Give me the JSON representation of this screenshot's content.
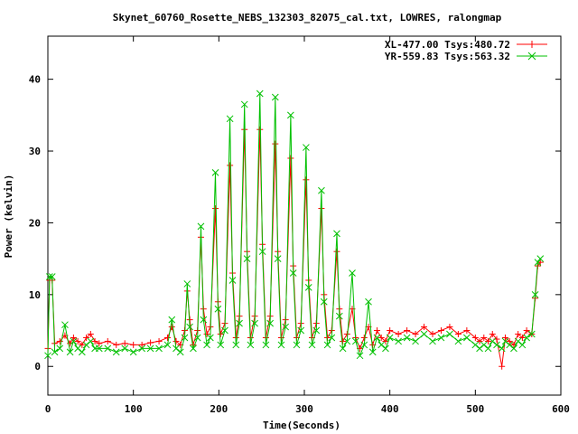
{
  "chart_data": {
    "type": "line",
    "title": "Skynet_60760_Rosette_NEBS_132303_82075_cal.txt, LOWRES, ralongmap",
    "xlabel": "Time(Seconds)",
    "ylabel": "Power (kelvin)",
    "xlim": [
      0,
      600
    ],
    "ylim": [
      -4,
      46
    ],
    "xticks": [
      0,
      100,
      200,
      300,
      400,
      500,
      600
    ],
    "yticks": [
      0,
      10,
      20,
      30,
      40
    ],
    "grid": false,
    "legend_position": "top-right",
    "series": [
      {
        "name": "XL-477.00 Tsys:480.72",
        "color": "#ff0000",
        "marker": "plus",
        "points": [
          [
            0,
            2.5
          ],
          [
            2,
            12.0
          ],
          [
            5,
            12.0
          ],
          [
            8,
            3.2
          ],
          [
            14,
            3.5
          ],
          [
            20,
            4.3
          ],
          [
            26,
            3.2
          ],
          [
            30,
            4.0
          ],
          [
            35,
            3.5
          ],
          [
            40,
            3.0
          ],
          [
            45,
            4.0
          ],
          [
            50,
            4.5
          ],
          [
            55,
            3.5
          ],
          [
            60,
            3.2
          ],
          [
            70,
            3.5
          ],
          [
            80,
            3.0
          ],
          [
            90,
            3.2
          ],
          [
            100,
            3.0
          ],
          [
            110,
            3.0
          ],
          [
            120,
            3.3
          ],
          [
            130,
            3.5
          ],
          [
            140,
            4.0
          ],
          [
            145,
            5.5
          ],
          [
            150,
            3.5
          ],
          [
            155,
            3.0
          ],
          [
            160,
            5.0
          ],
          [
            163,
            10.5
          ],
          [
            166,
            6.5
          ],
          [
            170,
            3.0
          ],
          [
            175,
            5.0
          ],
          [
            179,
            18.0
          ],
          [
            182,
            8.0
          ],
          [
            186,
            4.5
          ],
          [
            190,
            5.5
          ],
          [
            196,
            22.0
          ],
          [
            199,
            9.0
          ],
          [
            202,
            4.5
          ],
          [
            207,
            6.0
          ],
          [
            213,
            28.0
          ],
          [
            216,
            13.0
          ],
          [
            220,
            4.0
          ],
          [
            224,
            7.0
          ],
          [
            230,
            33.0
          ],
          [
            233,
            16.0
          ],
          [
            237,
            4.0
          ],
          [
            242,
            7.0
          ],
          [
            248,
            33.0
          ],
          [
            251,
            17.0
          ],
          [
            255,
            4.0
          ],
          [
            260,
            7.0
          ],
          [
            266,
            31.0
          ],
          [
            269,
            16.0
          ],
          [
            273,
            4.0
          ],
          [
            278,
            6.5
          ],
          [
            284,
            29.0
          ],
          [
            287,
            14.0
          ],
          [
            291,
            4.0
          ],
          [
            296,
            6.0
          ],
          [
            302,
            26.0
          ],
          [
            305,
            12.0
          ],
          [
            309,
            4.0
          ],
          [
            314,
            6.0
          ],
          [
            320,
            22.0
          ],
          [
            323,
            10.0
          ],
          [
            327,
            4.0
          ],
          [
            332,
            5.0
          ],
          [
            338,
            16.0
          ],
          [
            341,
            8.0
          ],
          [
            345,
            3.5
          ],
          [
            350,
            4.5
          ],
          [
            356,
            8.0
          ],
          [
            360,
            4.0
          ],
          [
            365,
            2.5
          ],
          [
            370,
            4.0
          ],
          [
            375,
            5.5
          ],
          [
            380,
            3.0
          ],
          [
            385,
            5.0
          ],
          [
            390,
            4.0
          ],
          [
            395,
            3.5
          ],
          [
            400,
            5.0
          ],
          [
            410,
            4.5
          ],
          [
            420,
            5.0
          ],
          [
            430,
            4.5
          ],
          [
            440,
            5.5
          ],
          [
            450,
            4.5
          ],
          [
            460,
            5.0
          ],
          [
            470,
            5.5
          ],
          [
            480,
            4.5
          ],
          [
            490,
            5.0
          ],
          [
            500,
            4.0
          ],
          [
            505,
            3.5
          ],
          [
            510,
            4.0
          ],
          [
            515,
            3.5
          ],
          [
            520,
            4.5
          ],
          [
            525,
            3.8
          ],
          [
            531,
            0.0
          ],
          [
            535,
            4.0
          ],
          [
            540,
            3.5
          ],
          [
            545,
            3.0
          ],
          [
            550,
            4.5
          ],
          [
            555,
            4.0
          ],
          [
            560,
            5.0
          ],
          [
            566,
            4.5
          ],
          [
            570,
            9.5
          ],
          [
            573,
            14.0
          ],
          [
            576,
            14.5
          ]
        ]
      },
      {
        "name": "YR-559.83 Tsys:563.32",
        "color": "#00c000",
        "marker": "cross",
        "points": [
          [
            0,
            1.5
          ],
          [
            2,
            12.5
          ],
          [
            5,
            12.5
          ],
          [
            8,
            2.0
          ],
          [
            14,
            2.5
          ],
          [
            20,
            5.8
          ],
          [
            26,
            2.0
          ],
          [
            30,
            3.5
          ],
          [
            35,
            2.5
          ],
          [
            40,
            2.0
          ],
          [
            45,
            3.0
          ],
          [
            50,
            3.5
          ],
          [
            55,
            2.5
          ],
          [
            60,
            2.5
          ],
          [
            70,
            2.5
          ],
          [
            80,
            2.0
          ],
          [
            90,
            2.5
          ],
          [
            100,
            2.0
          ],
          [
            110,
            2.5
          ],
          [
            120,
            2.5
          ],
          [
            130,
            2.5
          ],
          [
            140,
            3.0
          ],
          [
            145,
            6.5
          ],
          [
            150,
            2.5
          ],
          [
            155,
            2.0
          ],
          [
            160,
            4.0
          ],
          [
            163,
            11.5
          ],
          [
            166,
            5.5
          ],
          [
            170,
            2.5
          ],
          [
            175,
            4.0
          ],
          [
            179,
            19.5
          ],
          [
            182,
            6.5
          ],
          [
            186,
            3.0
          ],
          [
            190,
            4.0
          ],
          [
            196,
            27.0
          ],
          [
            199,
            8.0
          ],
          [
            202,
            3.0
          ],
          [
            207,
            5.0
          ],
          [
            213,
            34.5
          ],
          [
            216,
            12.0
          ],
          [
            220,
            3.0
          ],
          [
            224,
            6.0
          ],
          [
            230,
            36.5
          ],
          [
            233,
            15.0
          ],
          [
            237,
            3.0
          ],
          [
            242,
            6.0
          ],
          [
            248,
            38.0
          ],
          [
            251,
            16.0
          ],
          [
            255,
            3.0
          ],
          [
            260,
            6.0
          ],
          [
            266,
            37.5
          ],
          [
            269,
            15.0
          ],
          [
            273,
            3.0
          ],
          [
            278,
            5.5
          ],
          [
            284,
            35.0
          ],
          [
            287,
            13.0
          ],
          [
            291,
            3.0
          ],
          [
            296,
            5.0
          ],
          [
            302,
            30.5
          ],
          [
            305,
            11.0
          ],
          [
            309,
            3.0
          ],
          [
            314,
            5.0
          ],
          [
            320,
            24.5
          ],
          [
            323,
            9.0
          ],
          [
            327,
            3.0
          ],
          [
            332,
            4.0
          ],
          [
            338,
            18.5
          ],
          [
            341,
            7.0
          ],
          [
            345,
            2.5
          ],
          [
            350,
            3.5
          ],
          [
            356,
            13.0
          ],
          [
            360,
            3.5
          ],
          [
            365,
            1.5
          ],
          [
            370,
            3.0
          ],
          [
            375,
            9.0
          ],
          [
            380,
            2.0
          ],
          [
            385,
            4.0
          ],
          [
            390,
            3.0
          ],
          [
            395,
            2.5
          ],
          [
            400,
            4.0
          ],
          [
            410,
            3.5
          ],
          [
            420,
            4.0
          ],
          [
            430,
            3.5
          ],
          [
            440,
            4.5
          ],
          [
            450,
            3.5
          ],
          [
            460,
            4.0
          ],
          [
            470,
            4.5
          ],
          [
            480,
            3.5
          ],
          [
            490,
            4.0
          ],
          [
            500,
            3.0
          ],
          [
            505,
            2.5
          ],
          [
            510,
            3.0
          ],
          [
            515,
            2.5
          ],
          [
            520,
            3.5
          ],
          [
            525,
            3.0
          ],
          [
            531,
            2.5
          ],
          [
            535,
            3.5
          ],
          [
            540,
            3.0
          ],
          [
            545,
            2.5
          ],
          [
            550,
            3.5
          ],
          [
            555,
            3.0
          ],
          [
            560,
            4.0
          ],
          [
            566,
            4.5
          ],
          [
            570,
            10.0
          ],
          [
            573,
            14.5
          ],
          [
            576,
            15.0
          ]
        ]
      }
    ]
  }
}
